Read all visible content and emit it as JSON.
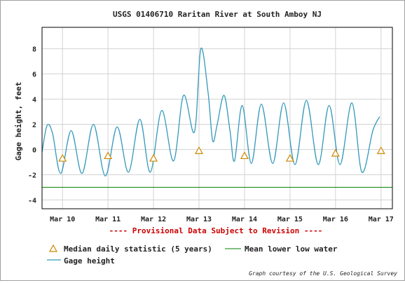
{
  "chart_data": {
    "type": "line",
    "title": "USGS 01406710 Raritan River at South Amboy NJ",
    "ylabel": "Gage height, feet",
    "xlabel": "",
    "ylim": [
      -4.7,
      9.7
    ],
    "xlim": [
      9.55,
      17.25
    ],
    "y_ticks": [
      8,
      6,
      4,
      2,
      0,
      -2,
      -4
    ],
    "x_ticks": [
      {
        "label": "Mar 10",
        "value": 10
      },
      {
        "label": "Mar 11",
        "value": 11
      },
      {
        "label": "Mar 12",
        "value": 12
      },
      {
        "label": "Mar 13",
        "value": 13
      },
      {
        "label": "Mar 14",
        "value": 14
      },
      {
        "label": "Mar 15",
        "value": 15
      },
      {
        "label": "Mar 16",
        "value": 16
      },
      {
        "label": "Mar 17",
        "value": 17
      }
    ],
    "grid": true,
    "series": [
      {
        "name": "Gage height",
        "color": "#3399bb",
        "x": [
          9.55,
          9.66,
          9.78,
          9.96,
          10.19,
          10.43,
          10.68,
          10.94,
          11.2,
          11.45,
          11.7,
          11.93,
          12.18,
          12.44,
          12.66,
          12.9,
          13.04,
          13.2,
          13.3,
          13.4,
          13.55,
          13.68,
          13.78,
          13.95,
          14.15,
          14.37,
          14.62,
          14.86,
          15.11,
          15.36,
          15.62,
          15.86,
          16.1,
          16.36,
          16.58,
          16.82,
          16.97
        ],
        "y": [
          -0.2,
          1.9,
          1.3,
          -1.9,
          1.5,
          -1.9,
          2.0,
          -2.1,
          1.8,
          -1.8,
          2.4,
          -1.8,
          3.1,
          -0.9,
          4.3,
          1.4,
          8.0,
          4.5,
          0.7,
          2.0,
          4.3,
          1.5,
          -0.9,
          3.5,
          -1.1,
          3.6,
          -1.1,
          3.7,
          -1.2,
          3.9,
          -1.2,
          3.5,
          -1.2,
          3.7,
          -1.8,
          1.5,
          2.6
        ]
      },
      {
        "name": "Median daily statistic (5 years)",
        "color": "#cc8800",
        "x": [
          10.0,
          11.0,
          12.0,
          13.0,
          14.0,
          15.0,
          16.0,
          17.0
        ],
        "y": [
          -0.7,
          -0.5,
          -0.7,
          -0.1,
          -0.5,
          -0.7,
          -0.3,
          -0.1
        ]
      },
      {
        "name": "Mean lower low water",
        "color": "#008000",
        "y_constant": -3.0
      }
    ],
    "annotation": "---- Provisional Data Subject to Revision ----",
    "credit": "Graph courtesy of the U.S. Geological Survey",
    "legend_position": "bottom"
  },
  "colors": {
    "gage": "#3399bb",
    "median": "#cc8800",
    "mllw": "#008000",
    "provisional": "#cc0000",
    "grid": "#d3d3d3"
  },
  "legend": {
    "median_label": "Median daily statistic (5 years)",
    "mllw_label": "Mean lower low water",
    "gage_label": "Gage height"
  }
}
